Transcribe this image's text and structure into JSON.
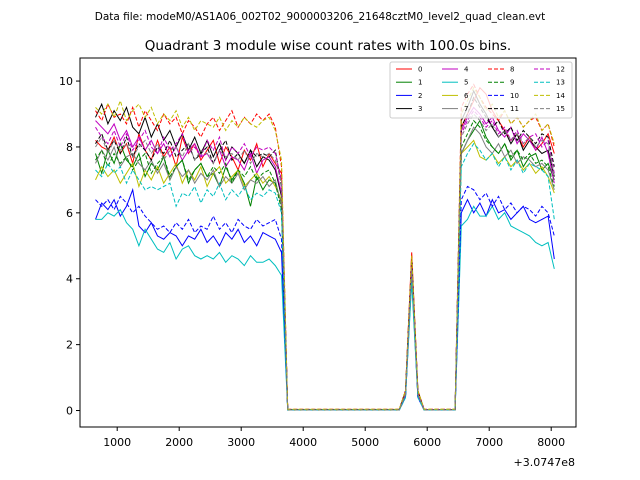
{
  "figure": {
    "suptitle": "Data file: modeM0/AS1A06_002T02_9000003206_21648cztM0_level2_quad_clean.evt"
  },
  "chart_data": {
    "type": "line",
    "title": "Quadrant 3 module wise count rates with 100.0s bins.",
    "xlabel": "",
    "ylabel": "",
    "x_offset_label": "+3.0747e8",
    "xlim": [
      400,
      8400
    ],
    "ylim": [
      -0.5,
      10.7
    ],
    "xticks": [
      1000,
      2000,
      3000,
      4000,
      5000,
      6000,
      7000,
      8000
    ],
    "xtick_labels": [
      "1000",
      "2000",
      "3000",
      "4000",
      "5000",
      "6000",
      "7000",
      "8000"
    ],
    "yticks": [
      0,
      2,
      4,
      6,
      8,
      10
    ],
    "ytick_labels": [
      "0",
      "2",
      "4",
      "6",
      "8",
      "10"
    ],
    "grid": false,
    "legend": {
      "placement": "top-right",
      "columns": 4
    },
    "segments": [
      {
        "x_start": 650,
        "x_step": 100,
        "n": 31
      },
      {
        "x_start": 3750,
        "x_step": 100,
        "n": 19
      },
      {
        "x_start": 5650,
        "x_step": 100,
        "n": 3
      },
      {
        "x_start": 5950,
        "x_step": 100,
        "n": 6
      },
      {
        "x_start": 6550,
        "x_step": 100,
        "n": 16
      }
    ],
    "series": [
      {
        "name": "0",
        "color": "#ff0000",
        "dash": false,
        "active": [
          8.2,
          8.0,
          7.9,
          8.3,
          7.8,
          8.1,
          7.5,
          8.4,
          7.9,
          7.6,
          8.2,
          7.7,
          8.0,
          7.4,
          8.3,
          7.8,
          8.1,
          7.6,
          7.9,
          8.2,
          7.5,
          8.0,
          7.7,
          7.3,
          7.9,
          7.6,
          8.1,
          7.4,
          7.8,
          7.5,
          7.2,
          8.6,
          9.0,
          9.4,
          9.8,
          9.6,
          9.1,
          8.8,
          8.5,
          8.2,
          8.4,
          8.0,
          8.3,
          7.9,
          8.1,
          8.4,
          7.8
        ],
        "gap": 0.03,
        "flare": [
          0.6,
          4.8,
          0.6
        ]
      },
      {
        "name": "1",
        "color": "#008000",
        "dash": false,
        "active": [
          7.8,
          7.2,
          7.9,
          7.5,
          8.1,
          7.6,
          7.4,
          7.8,
          7.1,
          7.5,
          7.3,
          7.7,
          7.0,
          7.4,
          7.6,
          6.9,
          7.3,
          7.5,
          7.1,
          7.2,
          6.8,
          7.4,
          7.0,
          7.3,
          6.9,
          6.2,
          7.1,
          6.7,
          7.0,
          6.9,
          6.3,
          7.8,
          8.2,
          8.5,
          8.8,
          8.3,
          8.0,
          7.8,
          8.1,
          7.6,
          7.9,
          7.4,
          7.7,
          7.8,
          7.3,
          7.5,
          7.0
        ],
        "gap": 0.02,
        "flare": [
          0.5,
          4.5,
          0.5
        ]
      },
      {
        "name": "2",
        "color": "#0000ff",
        "dash": false,
        "active": [
          5.8,
          6.3,
          6.1,
          6.4,
          5.9,
          6.2,
          6.7,
          5.6,
          5.4,
          5.7,
          5.3,
          5.2,
          5.4,
          5.3,
          5.0,
          5.3,
          5.2,
          5.5,
          5.1,
          5.3,
          5.0,
          5.4,
          5.2,
          5.5,
          5.1,
          5.3,
          5.0,
          5.4,
          5.3,
          5.2,
          4.8,
          6.0,
          6.4,
          6.0,
          6.3,
          5.9,
          6.4,
          6.0,
          6.1,
          5.8,
          6.0,
          6.2,
          5.8,
          5.7,
          5.8,
          5.9,
          4.6
        ],
        "gap": 0.02,
        "flare": [
          0.4,
          4.1,
          0.4
        ]
      },
      {
        "name": "3",
        "color": "#000000",
        "dash": false,
        "active": [
          8.9,
          9.3,
          8.7,
          9.1,
          8.8,
          9.2,
          8.6,
          8.4,
          8.9,
          8.3,
          8.7,
          8.2,
          8.5,
          8.0,
          8.4,
          7.9,
          8.3,
          7.8,
          8.2,
          7.7,
          8.1,
          7.6,
          8.0,
          7.8,
          7.5,
          7.9,
          7.4,
          7.7,
          7.6,
          7.3,
          6.5,
          8.8,
          9.2,
          9.7,
          9.3,
          9.0,
          8.6,
          8.3,
          8.5,
          8.1,
          8.4,
          7.9,
          8.2,
          8.0,
          7.8,
          7.9,
          7.1
        ],
        "gap": 0.03,
        "flare": [
          0.6,
          4.6,
          0.6
        ]
      },
      {
        "name": "4",
        "color": "#c000c0",
        "dash": false,
        "active": [
          8.8,
          8.6,
          8.4,
          8.7,
          8.2,
          8.5,
          8.0,
          8.3,
          7.9,
          8.2,
          7.8,
          8.1,
          7.7,
          8.0,
          7.6,
          7.9,
          8.1,
          7.7,
          7.8,
          7.5,
          7.9,
          7.4,
          7.7,
          7.6,
          7.3,
          7.8,
          7.2,
          7.6,
          7.7,
          7.4,
          6.6,
          8.5,
          8.9,
          9.2,
          9.0,
          8.7,
          8.9,
          8.5,
          8.3,
          8.6,
          8.1,
          8.4,
          8.2,
          7.9,
          8.3,
          7.8,
          6.9
        ],
        "gap": 0.02,
        "flare": [
          0.5,
          4.4,
          0.5
        ]
      },
      {
        "name": "5",
        "color": "#00bfbf",
        "dash": false,
        "active": [
          5.8,
          5.8,
          6.0,
          5.9,
          6.1,
          5.7,
          5.5,
          5.0,
          5.5,
          5.2,
          4.9,
          4.8,
          5.1,
          4.6,
          4.9,
          5.0,
          4.7,
          4.6,
          4.7,
          4.6,
          4.8,
          4.5,
          4.7,
          4.6,
          4.4,
          4.7,
          4.5,
          4.5,
          4.6,
          4.4,
          4.1,
          5.6,
          5.8,
          6.2,
          5.9,
          5.9,
          6.2,
          5.8,
          6.0,
          5.6,
          5.5,
          5.4,
          5.3,
          5.1,
          5.0,
          5.1,
          4.3
        ],
        "gap": 0.02,
        "flare": [
          0.4,
          3.9,
          0.4
        ]
      },
      {
        "name": "6",
        "color": "#bfbf00",
        "dash": false,
        "active": [
          7.0,
          7.4,
          7.1,
          7.3,
          6.9,
          7.2,
          7.5,
          6.8,
          7.3,
          7.0,
          7.4,
          6.9,
          7.2,
          7.5,
          6.9,
          7.3,
          7.0,
          7.4,
          6.8,
          7.2,
          7.4,
          6.9,
          7.1,
          7.3,
          6.8,
          7.0,
          7.2,
          6.9,
          7.1,
          6.8,
          6.4,
          7.8,
          8.0,
          8.2,
          7.7,
          7.6,
          7.8,
          7.5,
          7.7,
          7.4,
          7.6,
          7.3,
          7.5,
          7.2,
          7.4,
          7.1,
          6.6
        ],
        "gap": 0.02,
        "flare": [
          0.5,
          4.2,
          0.5
        ]
      },
      {
        "name": "7",
        "color": "#808080",
        "dash": false,
        "active": [
          7.5,
          7.9,
          7.6,
          8.0,
          7.4,
          7.7,
          7.8,
          7.5,
          7.3,
          7.6,
          7.2,
          7.5,
          7.0,
          7.4,
          7.1,
          7.3,
          6.9,
          7.2,
          7.0,
          7.3,
          6.8,
          7.1,
          6.9,
          7.2,
          6.7,
          7.0,
          6.9,
          7.1,
          6.8,
          7.0,
          6.2,
          7.8,
          8.2,
          8.6,
          8.4,
          8.0,
          7.8,
          8.1,
          7.7,
          7.9,
          7.5,
          7.7,
          7.6,
          7.4,
          7.5,
          7.3,
          6.7
        ],
        "gap": 0.02,
        "flare": [
          0.5,
          4.3,
          0.5
        ]
      },
      {
        "name": "8",
        "color": "#ff0000",
        "dash": true,
        "active": [
          9.1,
          8.8,
          9.3,
          8.9,
          9.0,
          8.7,
          9.2,
          8.6,
          9.1,
          8.8,
          8.5,
          9.0,
          8.7,
          8.9,
          8.4,
          8.8,
          8.6,
          8.3,
          8.7,
          8.9,
          8.5,
          8.8,
          9.1,
          8.6,
          8.9,
          8.7,
          9.0,
          8.8,
          9.0,
          8.6,
          7.4,
          9.2,
          9.6,
          9.9,
          9.5,
          9.2,
          9.0,
          8.8,
          9.1,
          8.7,
          8.9,
          8.6,
          8.8,
          8.9,
          8.5,
          8.7,
          8.0
        ],
        "gap": 0.04,
        "flare": [
          0.6,
          4.7,
          0.6
        ]
      },
      {
        "name": "9",
        "color": "#008000",
        "dash": true,
        "active": [
          7.6,
          7.9,
          7.4,
          7.8,
          7.5,
          7.7,
          7.3,
          7.6,
          7.8,
          7.2,
          7.5,
          7.7,
          7.1,
          7.4,
          7.6,
          7.0,
          7.3,
          7.5,
          7.1,
          7.4,
          7.2,
          7.5,
          6.9,
          7.3,
          7.1,
          7.4,
          7.0,
          7.2,
          7.3,
          6.9,
          6.1,
          8.0,
          8.4,
          8.8,
          8.6,
          8.2,
          8.0,
          7.8,
          8.1,
          7.7,
          7.9,
          7.6,
          7.8,
          7.5,
          7.6,
          7.4,
          6.8
        ],
        "gap": 0.02,
        "flare": [
          0.5,
          4.4,
          0.5
        ]
      },
      {
        "name": "10",
        "color": "#0000ff",
        "dash": true,
        "active": [
          6.4,
          6.2,
          6.4,
          6.1,
          6.5,
          6.3,
          6.0,
          6.2,
          5.9,
          5.7,
          5.5,
          5.6,
          5.4,
          5.7,
          5.5,
          5.8,
          5.4,
          5.6,
          5.5,
          5.9,
          5.5,
          5.7,
          5.4,
          5.8,
          5.6,
          5.5,
          5.8,
          5.6,
          5.7,
          5.8,
          5.2,
          6.4,
          6.8,
          6.7,
          6.4,
          6.6,
          6.2,
          6.5,
          6.1,
          6.3,
          6.0,
          6.2,
          6.1,
          5.9,
          6.2,
          6.0,
          5.3
        ],
        "gap": 0.02,
        "flare": [
          0.4,
          4.2,
          0.4
        ]
      },
      {
        "name": "11",
        "color": "#000000",
        "dash": true,
        "active": [
          8.1,
          8.4,
          7.9,
          8.2,
          7.8,
          8.3,
          7.7,
          8.1,
          7.9,
          7.6,
          8.0,
          7.8,
          8.2,
          7.7,
          7.9,
          8.1,
          7.6,
          7.8,
          8.0,
          7.5,
          7.9,
          8.2,
          7.6,
          7.8,
          7.5,
          7.9,
          7.7,
          7.8,
          7.7,
          7.9,
          6.8,
          8.6,
          9.0,
          9.5,
          9.2,
          8.9,
          8.6,
          8.8,
          8.4,
          8.6,
          8.2,
          8.5,
          8.3,
          8.1,
          8.4,
          8.3,
          7.4
        ],
        "gap": 0.03,
        "flare": [
          0.5,
          4.5,
          0.5
        ]
      },
      {
        "name": "12",
        "color": "#c000c0",
        "dash": true,
        "active": [
          8.6,
          8.3,
          8.1,
          8.5,
          8.0,
          8.4,
          7.9,
          8.2,
          8.5,
          8.0,
          7.8,
          8.3,
          7.9,
          8.1,
          8.4,
          7.8,
          8.0,
          7.7,
          8.2,
          7.9,
          8.3,
          7.6,
          8.0,
          7.8,
          8.1,
          7.7,
          8.0,
          7.9,
          8.0,
          7.8,
          7.0,
          8.4,
          8.8,
          9.1,
          8.9,
          8.6,
          8.8,
          8.4,
          8.6,
          8.2,
          8.5,
          8.1,
          8.3,
          8.4,
          8.0,
          8.2,
          7.2
        ],
        "gap": 0.03,
        "flare": [
          0.5,
          4.4,
          0.5
        ]
      },
      {
        "name": "13",
        "color": "#00bfbf",
        "dash": true,
        "active": [
          7.3,
          7.1,
          7.5,
          7.2,
          7.4,
          6.9,
          7.3,
          7.0,
          6.7,
          6.8,
          6.7,
          6.8,
          6.9,
          6.2,
          6.6,
          6.5,
          6.8,
          6.3,
          6.7,
          6.5,
          6.9,
          6.4,
          6.7,
          6.5,
          6.8,
          6.4,
          6.6,
          6.5,
          6.7,
          6.6,
          6.0,
          7.4,
          7.8,
          8.1,
          7.9,
          7.6,
          7.8,
          7.4,
          7.7,
          7.3,
          7.6,
          7.2,
          7.5,
          7.4,
          7.3,
          7.1,
          5.8
        ],
        "gap": 0.02,
        "flare": [
          0.4,
          4.0,
          0.4
        ]
      },
      {
        "name": "14",
        "color": "#bfbf00",
        "dash": true,
        "active": [
          9.2,
          9.0,
          9.3,
          8.9,
          9.4,
          8.8,
          9.1,
          9.3,
          8.9,
          9.2,
          8.7,
          9.0,
          8.8,
          9.1,
          8.6,
          8.9,
          8.5,
          8.8,
          8.7,
          8.6,
          8.9,
          8.5,
          8.8,
          8.6,
          8.9,
          8.7,
          8.6,
          8.8,
          8.9,
          8.5,
          7.6,
          9.0,
          9.4,
          9.8,
          9.5,
          9.1,
          9.3,
          8.9,
          9.1,
          8.7,
          8.9,
          8.6,
          8.8,
          9.0,
          8.5,
          8.7,
          8.1
        ],
        "gap": 0.04,
        "flare": [
          0.6,
          4.7,
          0.6
        ]
      },
      {
        "name": "15",
        "color": "#808080",
        "dash": true,
        "active": [
          8.0,
          8.3,
          7.8,
          8.2,
          7.9,
          8.1,
          7.7,
          8.0,
          8.2,
          7.8,
          8.1,
          7.6,
          7.9,
          8.0,
          7.7,
          8.1,
          7.6,
          7.9,
          7.8,
          7.5,
          7.9,
          7.7,
          7.8,
          7.6,
          7.9,
          7.5,
          7.8,
          7.7,
          7.8,
          7.6,
          6.9,
          8.3,
          8.7,
          9.0,
          8.8,
          8.5,
          8.7,
          8.3,
          8.5,
          8.2,
          8.4,
          8.1,
          8.3,
          8.0,
          8.2,
          8.1,
          7.1
        ],
        "gap": 0.02,
        "flare": [
          0.5,
          4.3,
          0.5
        ]
      }
    ]
  }
}
